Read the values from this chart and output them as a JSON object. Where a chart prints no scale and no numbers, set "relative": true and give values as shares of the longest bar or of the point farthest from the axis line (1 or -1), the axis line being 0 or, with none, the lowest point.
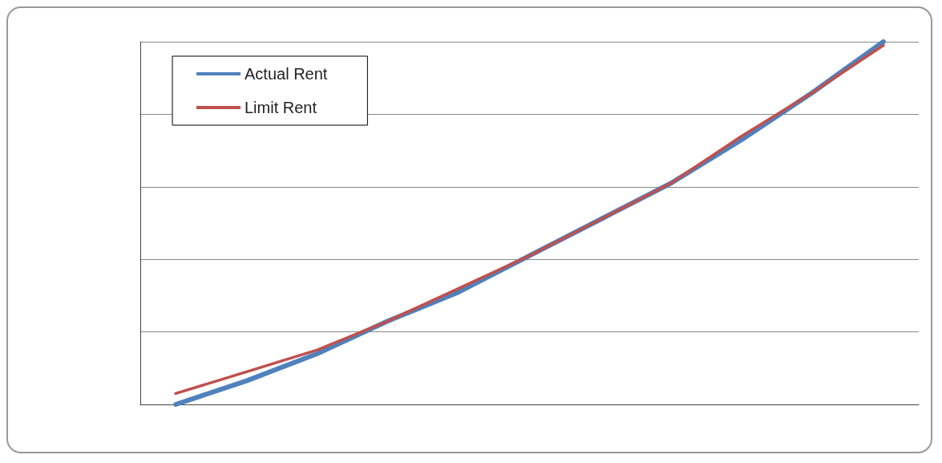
{
  "chart_data": {
    "type": "line",
    "relative": true,
    "categories": [
      null,
      null,
      null,
      null,
      null,
      null,
      null,
      null,
      null,
      null,
      null
    ],
    "series": [
      {
        "name": "Actual Rent",
        "color": "#4f81bd",
        "values": [
          0,
          0.065,
          0.14,
          0.23,
          0.31,
          0.41,
          0.51,
          0.61,
          0.73,
          0.86,
          1.0
        ]
      },
      {
        "name": "Limit Rent",
        "color": "#c0504d",
        "values": [
          0.03,
          0.09,
          0.15,
          0.23,
          0.32,
          0.41,
          0.51,
          0.61,
          0.74,
          0.86,
          0.99
        ]
      }
    ],
    "grid": "y",
    "legend": "top left",
    "marker": "none",
    "line_style": "solid"
  }
}
